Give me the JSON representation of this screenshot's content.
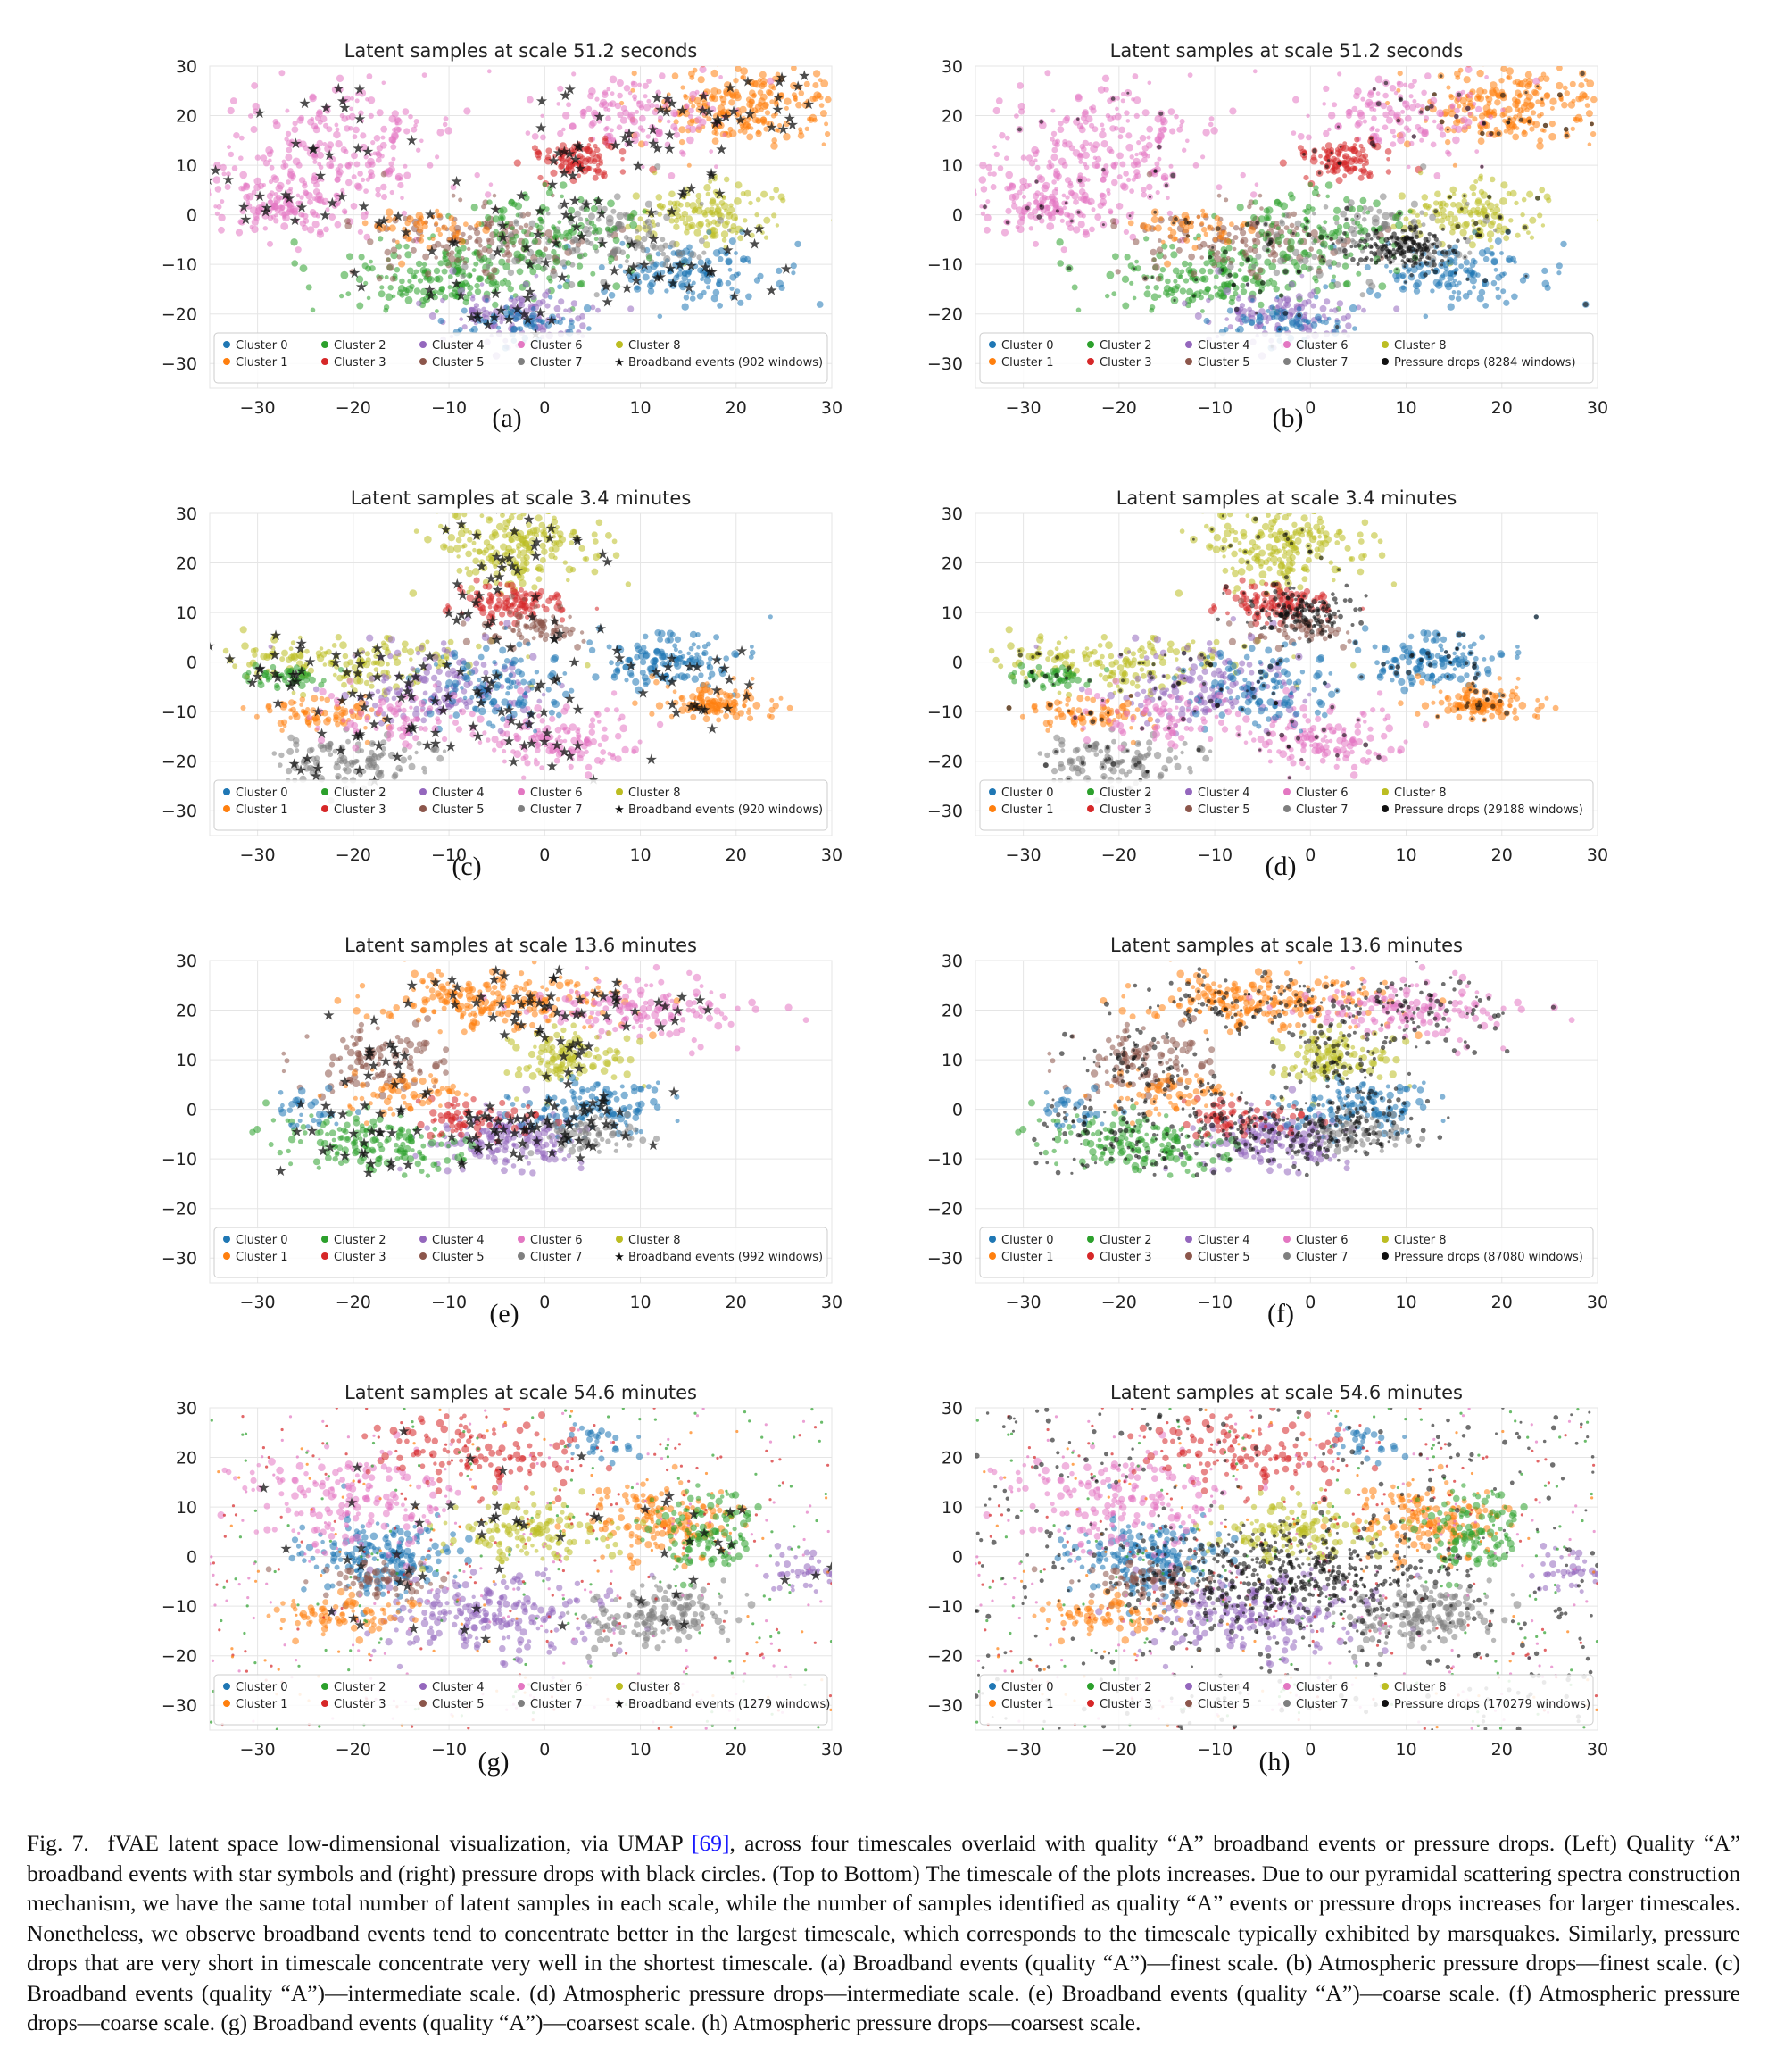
{
  "colors": {
    "cluster0": "#1f77b4",
    "cluster1": "#ff7f0e",
    "cluster2": "#2ca02c",
    "cluster3": "#d62728",
    "cluster4": "#9467bd",
    "cluster5": "#8c564b",
    "cluster6": "#e377c2",
    "cluster7": "#7f7f7f",
    "cluster8": "#bcbd22",
    "marker": "#111111",
    "grid": "#e5e5e5"
  },
  "caption": {
    "fig_label": "Fig. 7.",
    "text_before_ref": "fVAE latent space low-dimensional visualization, via UMAP ",
    "ref": "[69]",
    "text_after_ref": ", across four timescales overlaid with quality “A” broadband events or pressure drops. (Left) Quality “A” broadband events with star symbols and (right) pressure drops with black circles. (Top to Bottom) The timescale of the plots increases. Due to our pyramidal scattering spectra construction mechanism, we have the same total number of latent samples in each scale, while the number of samples identified as quality “A” events or pressure drops increases for larger timescales. Nonetheless, we observe broadband events tend to concentrate better in the largest timescale, which corresponds to the timescale typically exhibited by marsquakes. Similarly, pressure drops that are very short in timescale concentrate very well in the shortest timescale. (a) Broadband events (quality “A”)—finest scale. (b) Atmospheric pressure drops—finest scale. (c) Broadband events (quality “A”)—intermediate scale. (d) Atmospheric pressure drops—intermediate scale. (e) Broadband events (quality “A”)—coarse scale. (f) Atmospheric pressure drops—coarse scale. (g) Broadband events (quality “A”)—coarsest scale. (h) Atmospheric pressure drops—coarsest scale."
  },
  "chart_data": [
    {
      "panel": "(a)",
      "type": "scatter",
      "title": "Latent samples at scale 51.2 seconds",
      "xlim": [
        -35,
        30
      ],
      "ylim": [
        -35,
        30
      ],
      "xticks": [
        -30,
        -20,
        -10,
        0,
        10,
        20,
        30
      ],
      "yticks": [
        -30,
        -20,
        -10,
        0,
        10,
        20,
        30
      ],
      "grid": true,
      "legend_position": "bottom",
      "legend": [
        "Cluster 0",
        "Cluster 1",
        "Cluster 2",
        "Cluster 3",
        "Cluster 4",
        "Cluster 5",
        "Cluster 6",
        "Cluster 7",
        "Cluster 8",
        "Broadband events (902 windows)"
      ],
      "overlay": "stars",
      "overlay_count": 902
    },
    {
      "panel": "(b)",
      "type": "scatter",
      "title": "Latent samples at scale 51.2 seconds",
      "xlim": [
        -35,
        30
      ],
      "ylim": [
        -35,
        30
      ],
      "xticks": [
        -30,
        -20,
        -10,
        0,
        10,
        20,
        30
      ],
      "yticks": [
        -30,
        -20,
        -10,
        0,
        10,
        20,
        30
      ],
      "grid": true,
      "legend_position": "bottom",
      "legend": [
        "Cluster 0",
        "Cluster 1",
        "Cluster 2",
        "Cluster 3",
        "Cluster 4",
        "Cluster 5",
        "Cluster 6",
        "Cluster 7",
        "Cluster 8",
        "Pressure drops (8284 windows)"
      ],
      "overlay": "circles",
      "overlay_count": 8284
    },
    {
      "panel": "(c)",
      "type": "scatter",
      "title": "Latent samples at scale 3.4 minutes",
      "xlim": [
        -35,
        30
      ],
      "ylim": [
        -35,
        30
      ],
      "xticks": [
        -30,
        -20,
        -10,
        0,
        10,
        20,
        30
      ],
      "yticks": [
        -30,
        -20,
        -10,
        0,
        10,
        20,
        30
      ],
      "grid": true,
      "legend_position": "bottom",
      "legend": [
        "Cluster 0",
        "Cluster 1",
        "Cluster 2",
        "Cluster 3",
        "Cluster 4",
        "Cluster 5",
        "Cluster 6",
        "Cluster 7",
        "Cluster 8",
        "Broadband events (920 windows)"
      ],
      "overlay": "stars",
      "overlay_count": 920
    },
    {
      "panel": "(d)",
      "type": "scatter",
      "title": "Latent samples at scale 3.4 minutes",
      "xlim": [
        -35,
        30
      ],
      "ylim": [
        -35,
        30
      ],
      "xticks": [
        -30,
        -20,
        -10,
        0,
        10,
        20,
        30
      ],
      "yticks": [
        -30,
        -20,
        -10,
        0,
        10,
        20,
        30
      ],
      "grid": true,
      "legend_position": "bottom",
      "legend": [
        "Cluster 0",
        "Cluster 1",
        "Cluster 2",
        "Cluster 3",
        "Cluster 4",
        "Cluster 5",
        "Cluster 6",
        "Cluster 7",
        "Cluster 8",
        "Pressure drops (29188 windows)"
      ],
      "overlay": "circles",
      "overlay_count": 29188
    },
    {
      "panel": "(e)",
      "type": "scatter",
      "title": "Latent samples at scale 13.6 minutes",
      "xlim": [
        -35,
        30
      ],
      "ylim": [
        -35,
        30
      ],
      "xticks": [
        -30,
        -20,
        -10,
        0,
        10,
        20,
        30
      ],
      "yticks": [
        -30,
        -20,
        -10,
        0,
        10,
        20,
        30
      ],
      "grid": true,
      "legend_position": "bottom",
      "legend": [
        "Cluster 0",
        "Cluster 1",
        "Cluster 2",
        "Cluster 3",
        "Cluster 4",
        "Cluster 5",
        "Cluster 6",
        "Cluster 7",
        "Cluster 8",
        "Broadband events (992 windows)"
      ],
      "overlay": "stars",
      "overlay_count": 992
    },
    {
      "panel": "(f)",
      "type": "scatter",
      "title": "Latent samples at scale 13.6 minutes",
      "xlim": [
        -35,
        30
      ],
      "ylim": [
        -35,
        30
      ],
      "xticks": [
        -30,
        -20,
        -10,
        0,
        10,
        20,
        30
      ],
      "yticks": [
        -30,
        -20,
        -10,
        0,
        10,
        20,
        30
      ],
      "grid": true,
      "legend_position": "bottom",
      "legend": [
        "Cluster 0",
        "Cluster 1",
        "Cluster 2",
        "Cluster 3",
        "Cluster 4",
        "Cluster 5",
        "Cluster 6",
        "Cluster 7",
        "Cluster 8",
        "Pressure drops (87080 windows)"
      ],
      "overlay": "circles",
      "overlay_count": 87080
    },
    {
      "panel": "(g)",
      "type": "scatter",
      "title": "Latent samples at scale 54.6 minutes",
      "xlim": [
        -35,
        30
      ],
      "ylim": [
        -35,
        30
      ],
      "xticks": [
        -30,
        -20,
        -10,
        0,
        10,
        20,
        30
      ],
      "yticks": [
        -30,
        -20,
        -10,
        0,
        10,
        20,
        30
      ],
      "grid": true,
      "legend_position": "bottom",
      "legend": [
        "Cluster 0",
        "Cluster 1",
        "Cluster 2",
        "Cluster 3",
        "Cluster 4",
        "Cluster 5",
        "Cluster 6",
        "Cluster 7",
        "Cluster 8",
        "Broadband events (1279 windows)"
      ],
      "overlay": "stars",
      "overlay_count": 1279
    },
    {
      "panel": "(h)",
      "type": "scatter",
      "title": "Latent samples at scale 54.6 minutes",
      "xlim": [
        -35,
        30
      ],
      "ylim": [
        -35,
        30
      ],
      "xticks": [
        -30,
        -20,
        -10,
        0,
        10,
        20,
        30
      ],
      "yticks": [
        -30,
        -20,
        -10,
        0,
        10,
        20,
        30
      ],
      "grid": true,
      "legend_position": "bottom",
      "legend": [
        "Cluster 0",
        "Cluster 1",
        "Cluster 2",
        "Cluster 3",
        "Cluster 4",
        "Cluster 5",
        "Cluster 6",
        "Cluster 7",
        "Cluster 8",
        "Pressure drops (170279 windows)"
      ],
      "overlay": "circles",
      "overlay_count": 170279
    }
  ]
}
